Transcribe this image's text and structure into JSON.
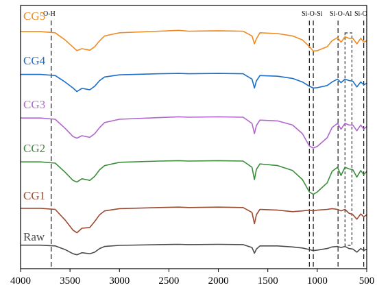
{
  "chart_data": {
    "type": "line",
    "title": "",
    "xlabel": "",
    "ylabel": "",
    "xlim": [
      4000,
      500
    ],
    "x_reversed": true,
    "x_ticks": [
      "4000",
      "3500",
      "3000",
      "2500",
      "2000",
      "1500",
      "1000",
      "500"
    ],
    "y_ticks_shown": false,
    "grid": false,
    "legend": "inline labels at left of each curve",
    "band_annotations": [
      {
        "label": "O-H",
        "x": [
          3690
        ]
      },
      {
        "label": "Si-O-Si",
        "x": [
          1080,
          1040
        ]
      },
      {
        "label": "Si-O-Al",
        "x": [
          790,
          720,
          650
        ]
      },
      {
        "label": "Si-O",
        "x": [
          530
        ]
      }
    ],
    "series": [
      {
        "name": "CG5",
        "color": "#ef8a22",
        "x": [
          4000,
          3800,
          3650,
          3550,
          3470,
          3430,
          3380,
          3300,
          3250,
          3200,
          3150,
          3000,
          2600,
          2400,
          2300,
          2000,
          1750,
          1660,
          1635,
          1615,
          1580,
          1400,
          1250,
          1150,
          1080,
          1040,
          1000,
          900,
          850,
          795,
          760,
          720,
          680,
          640,
          600,
          560,
          530,
          500
        ],
        "y": [
          93,
          93,
          90,
          72,
          54,
          45,
          50,
          46,
          55,
          70,
          82,
          90,
          94,
          96,
          94,
          95,
          94,
          82,
          62,
          75,
          90,
          88,
          82,
          72,
          55,
          44,
          45,
          55,
          70,
          78,
          66,
          80,
          76,
          76,
          62,
          76,
          66,
          70
        ]
      },
      {
        "name": "CG4",
        "color": "#1b6dc9",
        "x": [
          4000,
          3800,
          3650,
          3550,
          3470,
          3430,
          3380,
          3300,
          3250,
          3200,
          3150,
          3000,
          2600,
          2400,
          2300,
          2000,
          1750,
          1660,
          1635,
          1615,
          1580,
          1400,
          1250,
          1150,
          1080,
          1040,
          1000,
          900,
          850,
          795,
          760,
          720,
          680,
          640,
          600,
          560,
          530,
          500
        ],
        "y": [
          93,
          93,
          90,
          72,
          55,
          45,
          54,
          50,
          60,
          76,
          86,
          92,
          95,
          96,
          95,
          96,
          95,
          80,
          55,
          75,
          90,
          88,
          82,
          72,
          60,
          55,
          56,
          62,
          72,
          80,
          70,
          80,
          76,
          74,
          58,
          72,
          64,
          68
        ]
      },
      {
        "name": "CG3",
        "color": "#b066cc",
        "x": [
          4000,
          3800,
          3650,
          3550,
          3470,
          3430,
          3380,
          3300,
          3250,
          3200,
          3150,
          3000,
          2600,
          2400,
          2300,
          2000,
          1750,
          1660,
          1635,
          1615,
          1580,
          1400,
          1250,
          1150,
          1080,
          1040,
          1000,
          900,
          850,
          795,
          760,
          720,
          680,
          640,
          600,
          560,
          530,
          500
        ],
        "y": [
          93,
          93,
          90,
          68,
          48,
          44,
          50,
          46,
          55,
          70,
          82,
          90,
          94,
          96,
          95,
          96,
          95,
          80,
          55,
          75,
          88,
          86,
          76,
          55,
          25,
          20,
          24,
          45,
          70,
          80,
          66,
          80,
          76,
          76,
          62,
          76,
          66,
          72
        ]
      },
      {
        "name": "CG2",
        "color": "#3a8c3a",
        "x": [
          4000,
          3800,
          3650,
          3550,
          3470,
          3430,
          3380,
          3300,
          3250,
          3200,
          3150,
          3000,
          2600,
          2400,
          2300,
          2000,
          1750,
          1660,
          1635,
          1615,
          1580,
          1400,
          1250,
          1150,
          1080,
          1040,
          1000,
          900,
          850,
          795,
          760,
          720,
          680,
          640,
          600,
          560,
          530,
          500
        ],
        "y": [
          93,
          93,
          90,
          68,
          48,
          44,
          52,
          48,
          58,
          74,
          84,
          92,
          95,
          96,
          95,
          96,
          95,
          80,
          50,
          75,
          88,
          84,
          72,
          50,
          20,
          14,
          20,
          42,
          70,
          80,
          60,
          80,
          76,
          74,
          56,
          72,
          62,
          70
        ]
      },
      {
        "name": "CG1",
        "color": "#9a4a30",
        "x": [
          4000,
          3800,
          3650,
          3550,
          3470,
          3430,
          3380,
          3300,
          3250,
          3200,
          3150,
          3000,
          2600,
          2400,
          2300,
          2000,
          1750,
          1660,
          1635,
          1615,
          1580,
          1400,
          1250,
          1150,
          1080,
          1040,
          1000,
          900,
          850,
          795,
          760,
          720,
          680,
          640,
          600,
          560,
          530,
          500
        ],
        "y": [
          93,
          93,
          90,
          62,
          35,
          28,
          40,
          42,
          58,
          76,
          86,
          92,
          95,
          96,
          95,
          96,
          95,
          82,
          52,
          76,
          90,
          88,
          84,
          86,
          88,
          86,
          88,
          90,
          92,
          90,
          86,
          90,
          80,
          76,
          64,
          78,
          70,
          76
        ]
      },
      {
        "name": "Raw",
        "color": "#4a4a4a",
        "x": [
          4000,
          3800,
          3650,
          3550,
          3470,
          3430,
          3380,
          3300,
          3250,
          3200,
          3150,
          3000,
          2600,
          2400,
          2300,
          2000,
          1750,
          1660,
          1635,
          1615,
          1580,
          1400,
          1250,
          1150,
          1080,
          1040,
          1000,
          900,
          850,
          795,
          760,
          720,
          680,
          640,
          600,
          560,
          530,
          500
        ],
        "y": [
          93,
          93,
          90,
          76,
          60,
          56,
          64,
          60,
          66,
          80,
          88,
          92,
          95,
          96,
          95,
          96,
          95,
          84,
          62,
          78,
          90,
          90,
          86,
          82,
          76,
          72,
          74,
          80,
          86,
          88,
          84,
          88,
          80,
          78,
          66,
          80,
          72,
          78
        ]
      }
    ]
  }
}
